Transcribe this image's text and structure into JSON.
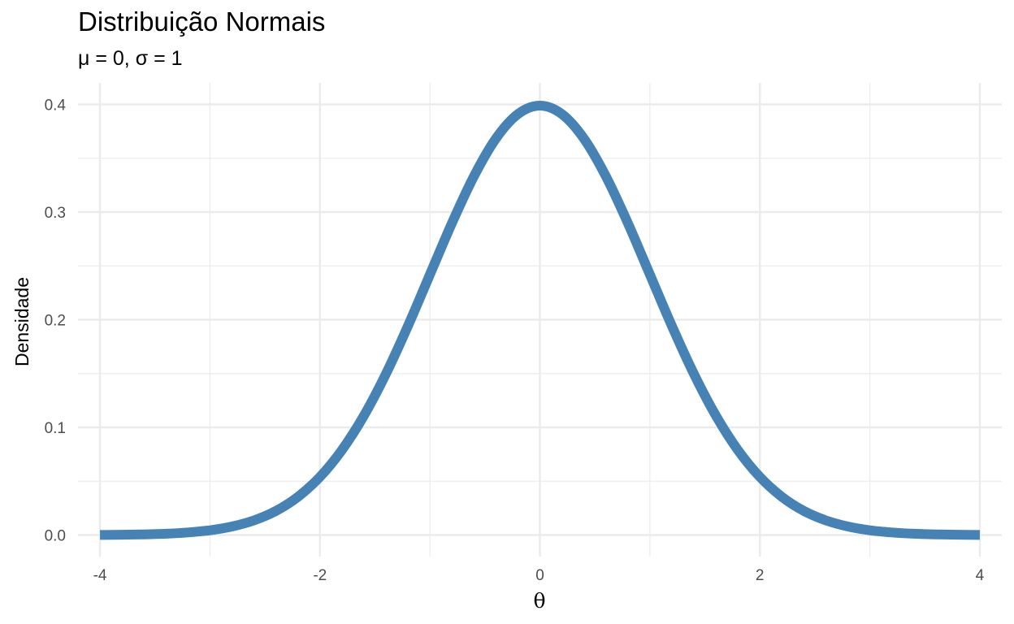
{
  "chart_data": {
    "type": "line",
    "title": "Distribuição Normais",
    "subtitle": "μ = 0, σ = 1",
    "xlabel": "θ",
    "ylabel": "Densidade",
    "xlim": [
      -4.2,
      4.2
    ],
    "ylim": [
      -0.02,
      0.42
    ],
    "x_ticks": [
      -4,
      -2,
      0,
      2,
      4
    ],
    "x_tick_labels": [
      "-4",
      "-2",
      "0",
      "2",
      "4"
    ],
    "x_minor_ticks": [
      -3,
      -1,
      1,
      3
    ],
    "y_ticks": [
      0.0,
      0.1,
      0.2,
      0.3,
      0.4
    ],
    "y_tick_labels": [
      "0.0",
      "0.1",
      "0.2",
      "0.3",
      "0.4"
    ],
    "y_minor_ticks": [
      0.05,
      0.15,
      0.25,
      0.35
    ],
    "grid": true,
    "series": [
      {
        "color": "#4682b4",
        "x": [
          -4.0,
          -3.8,
          -3.6,
          -3.4,
          -3.2,
          -3.0,
          -2.8,
          -2.6,
          -2.4,
          -2.2,
          -2.0,
          -1.8,
          -1.6,
          -1.4,
          -1.2,
          -1.0,
          -0.8,
          -0.6,
          -0.4,
          -0.2,
          0.0,
          0.2,
          0.4,
          0.6,
          0.8,
          1.0,
          1.2,
          1.4,
          1.6,
          1.8,
          2.0,
          2.2,
          2.4,
          2.6,
          2.8,
          3.0,
          3.2,
          3.4,
          3.6,
          3.8,
          4.0
        ],
        "y": [
          0.0001,
          0.0003,
          0.0006,
          0.0012,
          0.0024,
          0.0044,
          0.0079,
          0.0136,
          0.0224,
          0.0355,
          0.054,
          0.079,
          0.1109,
          0.1497,
          0.1942,
          0.242,
          0.2897,
          0.3332,
          0.3683,
          0.391,
          0.3989,
          0.391,
          0.3683,
          0.3332,
          0.2897,
          0.242,
          0.1942,
          0.1497,
          0.1109,
          0.079,
          0.054,
          0.0355,
          0.0224,
          0.0136,
          0.0079,
          0.0044,
          0.0024,
          0.0012,
          0.0006,
          0.0003,
          0.0001
        ]
      }
    ]
  }
}
